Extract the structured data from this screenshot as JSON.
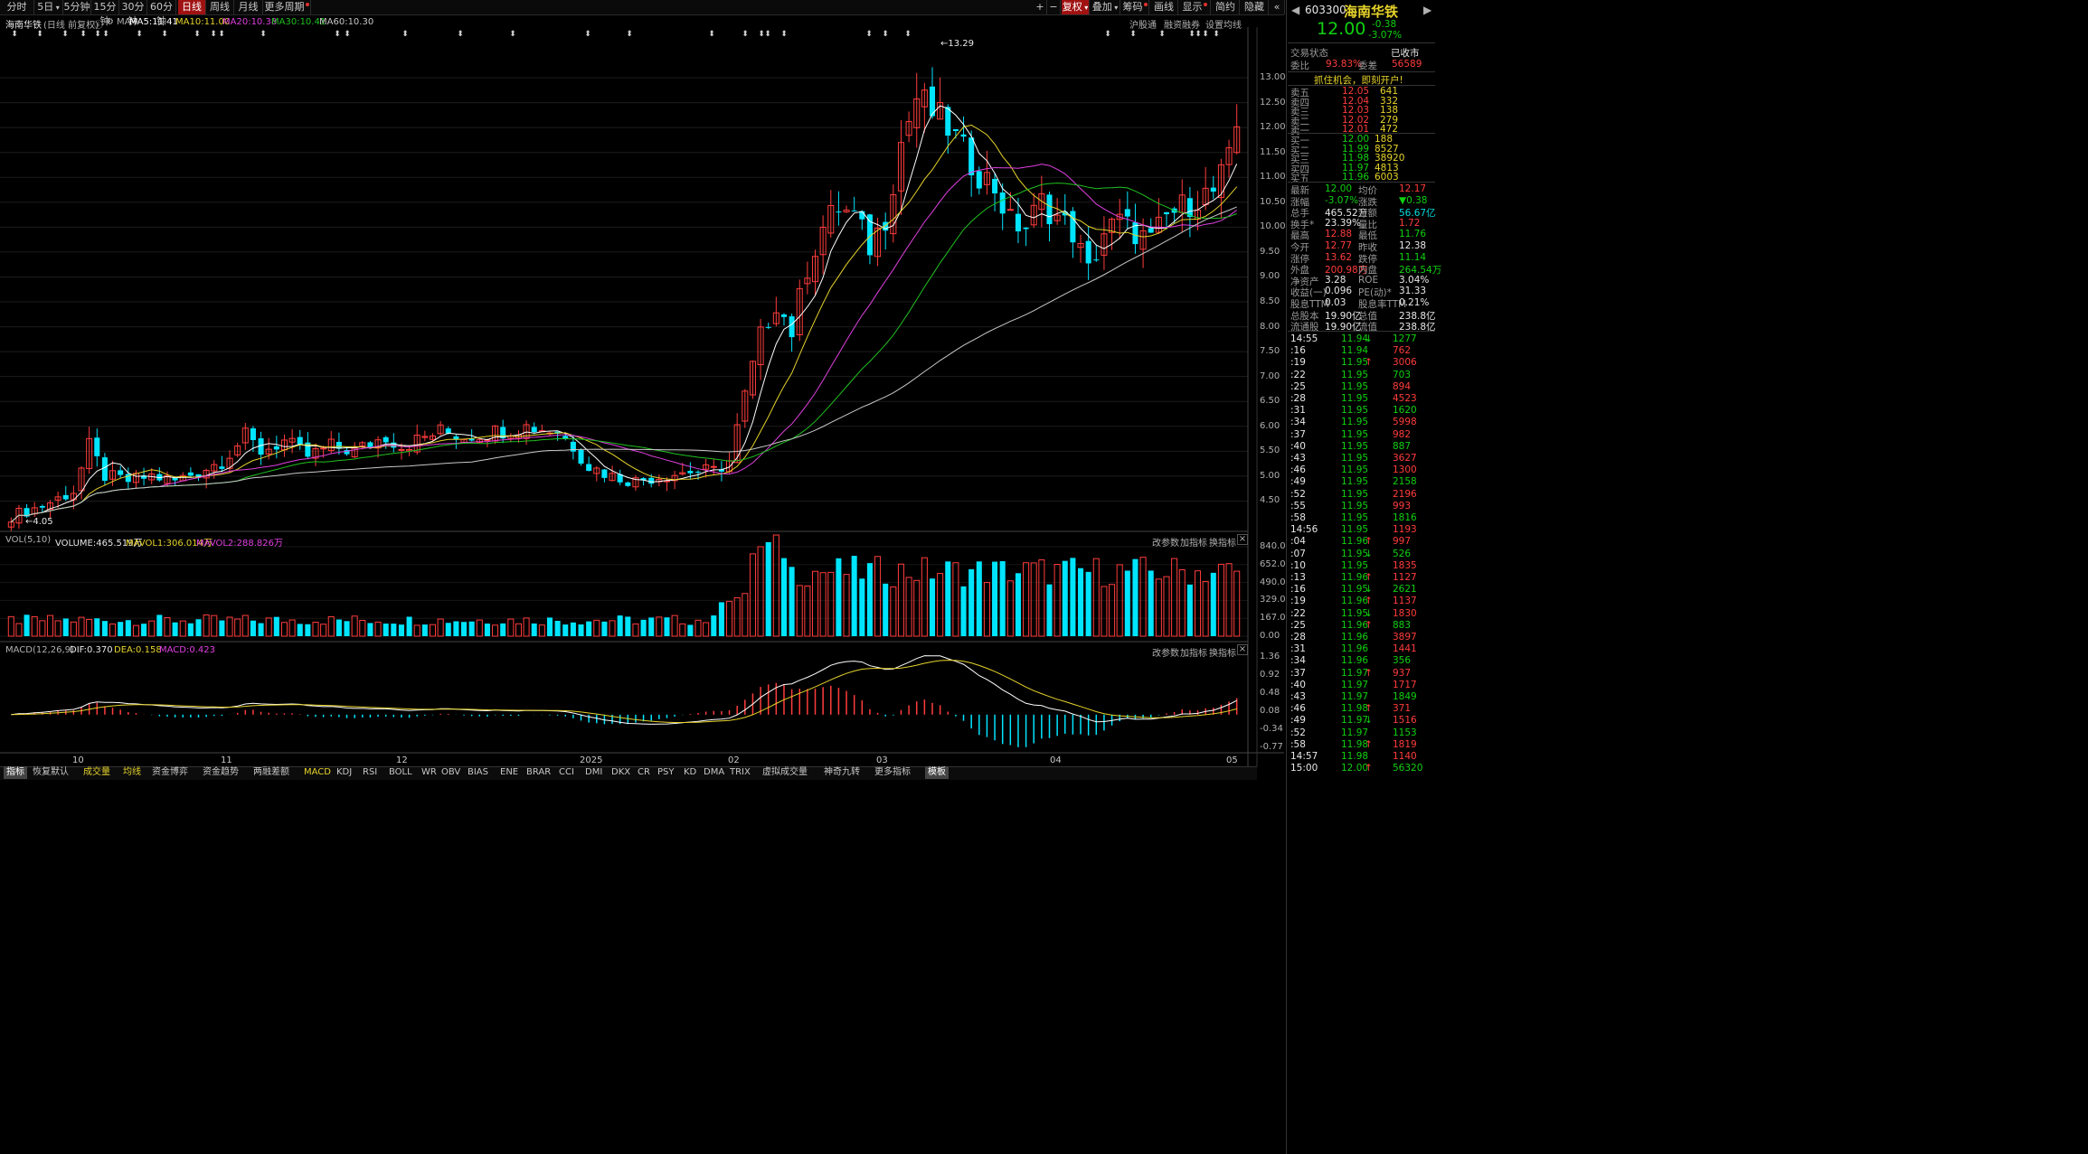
{
  "toolbar": {
    "tabs": [
      "分时",
      "5日",
      "5分钟",
      "15分钟",
      "30分钟",
      "60分钟",
      "日线",
      "周线",
      "月线",
      "更多周期"
    ],
    "active_tab": "日线",
    "right_buttons": [
      "+",
      "−",
      "复权",
      "叠加",
      "筹码",
      "画线",
      "显示",
      "简约",
      "隐藏"
    ]
  },
  "chart_header": {
    "name": "海南华铁",
    "mode": "(日线 前复权)",
    "ma_label": "MA",
    "ma5": "MA5:11.41",
    "ma10": "MA10:11.00",
    "ma20": "MA20:10.38",
    "ma30": "MA30:10.41",
    "ma60": "MA60:10.30",
    "links": [
      "沪股通",
      "融资融券",
      "设置均线"
    ],
    "high_mark": "13.29",
    "low_mark": "4.05"
  },
  "colors": {
    "up": "#ff3c3c",
    "down": "#00e5ff",
    "ma5": "#ffffff",
    "ma10": "#e6d32a",
    "ma20": "#e040e0",
    "ma30": "#20c020",
    "ma60": "#c8c8c8",
    "bg": "#000000"
  },
  "price_axis": [
    "13.00",
    "12.50",
    "12.00",
    "11.50",
    "11.00",
    "10.50",
    "10.00",
    "9.50",
    "9.00",
    "8.50",
    "8.00",
    "7.50",
    "7.00",
    "6.50",
    "6.00",
    "5.50",
    "5.00",
    "4.50"
  ],
  "vol_header": {
    "label": "VOL(5,10)",
    "volume": "VOLUME:465.519万",
    "mavol1": "MAVOL1:306.014万",
    "mavol2": "MAVOL2:288.826万",
    "buttons": [
      "改参数",
      "加指标",
      "换指标"
    ]
  },
  "vol_axis": [
    "840.00",
    "652.00",
    "490.00",
    "329.00",
    "167.00",
    "0.00"
  ],
  "macd_header": {
    "label": "MACD(12,26,9)",
    "dif": "DIF:0.370",
    "dea": "DEA:0.158",
    "macd": "MACD:0.423",
    "buttons": [
      "改参数",
      "加指标",
      "换指标"
    ]
  },
  "macd_axis": [
    "1.36",
    "0.92",
    "0.48",
    "0.08",
    "-0.34",
    "-0.77"
  ],
  "date_axis": [
    "10",
    "11",
    "12",
    "2025",
    "02",
    "03",
    "04",
    "05"
  ],
  "bottom_tabs": [
    "指标",
    "恢复默认",
    "成交量",
    "均线",
    "资金博弈",
    "资金趋势",
    "两融差额",
    "MACD",
    "KDJ",
    "RSI",
    "BOLL",
    "WR",
    "OBV",
    "BIAS",
    "ENE",
    "BRAR",
    "CCI",
    "DMI",
    "DKX",
    "CR",
    "PSY",
    "KD",
    "DMA",
    "TRIX",
    "虚拟成交量",
    "神奇九转",
    "更多指标",
    "模板"
  ],
  "quote": {
    "code": "603300",
    "name": "海南华铁",
    "price": "12.00",
    "change": "-0.38",
    "change_pct": "-3.07%",
    "status_label": "交易状态",
    "status_value": "已收市",
    "webi_label": "委比",
    "webi": "93.83%",
    "weicha_label": "委差",
    "weicha": "56589",
    "promo": "抓住机会，即刻开户!",
    "asks": [
      {
        "label": "卖五",
        "price": "12.05",
        "vol": "641"
      },
      {
        "label": "卖四",
        "price": "12.04",
        "vol": "332"
      },
      {
        "label": "卖三",
        "price": "12.03",
        "vol": "138"
      },
      {
        "label": "卖二",
        "price": "12.02",
        "vol": "279"
      },
      {
        "label": "卖一",
        "price": "12.01",
        "vol": "472"
      }
    ],
    "bids": [
      {
        "label": "买一",
        "price": "12.00",
        "vol": "188"
      },
      {
        "label": "买二",
        "price": "11.99",
        "vol": "8527"
      },
      {
        "label": "买三",
        "price": "11.98",
        "vol": "38920"
      },
      {
        "label": "买四",
        "price": "11.97",
        "vol": "4813"
      },
      {
        "label": "买五",
        "price": "11.96",
        "vol": "6003"
      }
    ],
    "stats": [
      {
        "l1": "最新",
        "v1": "12.00",
        "c1": "grn",
        "l2": "均价",
        "v2": "12.17",
        "c2": "red"
      },
      {
        "l1": "涨幅",
        "v1": "-3.07%",
        "c1": "grn",
        "l2": "涨跌",
        "v2": "▼0.38",
        "c2": "grn"
      },
      {
        "l1": "总手",
        "v1": "465.52万",
        "c1": "wht",
        "l2": "金额",
        "v2": "56.67亿",
        "c2": "cyn"
      },
      {
        "l1": "换手*",
        "v1": "23.39%",
        "c1": "wht",
        "l2": "量比",
        "v2": "1.72",
        "c2": "red"
      },
      {
        "l1": "最高",
        "v1": "12.88",
        "c1": "red",
        "l2": "最低",
        "v2": "11.76",
        "c2": "grn"
      },
      {
        "l1": "今开",
        "v1": "12.77",
        "c1": "red",
        "l2": "昨收",
        "v2": "12.38",
        "c2": "wht"
      },
      {
        "l1": "涨停",
        "v1": "13.62",
        "c1": "red",
        "l2": "跌停",
        "v2": "11.14",
        "c2": "grn"
      },
      {
        "l1": "外盘",
        "v1": "200.98万",
        "c1": "red",
        "l2": "内盘",
        "v2": "264.54万",
        "c2": "grn"
      },
      {
        "l1": "净资产",
        "v1": "3.28",
        "c1": "wht",
        "l2": "ROE",
        "v2": "3.04%",
        "c2": "wht"
      },
      {
        "l1": "收益(一)",
        "v1": "0.096",
        "c1": "wht",
        "l2": "PE(动)*",
        "v2": "31.33",
        "c2": "wht"
      },
      {
        "l1": "股息TTM",
        "v1": "0.03",
        "c1": "wht",
        "l2": "股息率TTM",
        "v2": "0.21%",
        "c2": "wht"
      },
      {
        "l1": "总股本",
        "v1": "19.90亿",
        "c1": "wht",
        "l2": "总值",
        "v2": "238.8亿",
        "c2": "wht"
      },
      {
        "l1": "流通股",
        "v1": "19.90亿",
        "c1": "wht",
        "l2": "流值",
        "v2": "238.8亿",
        "c2": "wht"
      }
    ],
    "ticks": [
      {
        "t": "14:55",
        "p": "11.94",
        "a": "↓",
        "v": "1277"
      },
      {
        "t": ":16",
        "p": "11.94",
        "a": "",
        "v": "762"
      },
      {
        "t": ":19",
        "p": "11.95",
        "a": "↑",
        "v": "3006"
      },
      {
        "t": ":22",
        "p": "11.95",
        "a": "",
        "v": "703"
      },
      {
        "t": ":25",
        "p": "11.95",
        "a": "",
        "v": "894"
      },
      {
        "t": ":28",
        "p": "11.95",
        "a": "",
        "v": "4523"
      },
      {
        "t": ":31",
        "p": "11.95",
        "a": "",
        "v": "1620"
      },
      {
        "t": ":34",
        "p": "11.95",
        "a": "",
        "v": "5998"
      },
      {
        "t": ":37",
        "p": "11.95",
        "a": "",
        "v": "982"
      },
      {
        "t": ":40",
        "p": "11.95",
        "a": "",
        "v": "887"
      },
      {
        "t": ":43",
        "p": "11.95",
        "a": "",
        "v": "3627"
      },
      {
        "t": ":46",
        "p": "11.95",
        "a": "",
        "v": "1300"
      },
      {
        "t": ":49",
        "p": "11.95",
        "a": "",
        "v": "2158"
      },
      {
        "t": ":52",
        "p": "11.95",
        "a": "",
        "v": "2196"
      },
      {
        "t": ":55",
        "p": "11.95",
        "a": "",
        "v": "993"
      },
      {
        "t": ":58",
        "p": "11.95",
        "a": "",
        "v": "1816"
      },
      {
        "t": "14:56",
        "p": "11.95",
        "a": "",
        "v": "1193"
      },
      {
        "t": ":04",
        "p": "11.96",
        "a": "↑",
        "v": "997"
      },
      {
        "t": ":07",
        "p": "11.95",
        "a": "↓",
        "v": "526"
      },
      {
        "t": ":10",
        "p": "11.95",
        "a": "",
        "v": "1835"
      },
      {
        "t": ":13",
        "p": "11.96",
        "a": "↑",
        "v": "1127"
      },
      {
        "t": ":16",
        "p": "11.95",
        "a": "↓",
        "v": "2621"
      },
      {
        "t": ":19",
        "p": "11.96",
        "a": "↑",
        "v": "1137"
      },
      {
        "t": ":22",
        "p": "11.95",
        "a": "↓",
        "v": "1830"
      },
      {
        "t": ":25",
        "p": "11.96",
        "a": "↑",
        "v": "883"
      },
      {
        "t": ":28",
        "p": "11.96",
        "a": "",
        "v": "3897"
      },
      {
        "t": ":31",
        "p": "11.96",
        "a": "",
        "v": "1441"
      },
      {
        "t": ":34",
        "p": "11.96",
        "a": "",
        "v": "356"
      },
      {
        "t": ":37",
        "p": "11.97",
        "a": "↑",
        "v": "937"
      },
      {
        "t": ":40",
        "p": "11.97",
        "a": "",
        "v": "1717"
      },
      {
        "t": ":43",
        "p": "11.97",
        "a": "",
        "v": "1849"
      },
      {
        "t": ":46",
        "p": "11.98",
        "a": "↑",
        "v": "371"
      },
      {
        "t": ":49",
        "p": "11.97",
        "a": "↓",
        "v": "1516"
      },
      {
        "t": ":52",
        "p": "11.97",
        "a": "",
        "v": "1153"
      },
      {
        "t": ":58",
        "p": "11.98",
        "a": "↑",
        "v": "1819"
      },
      {
        "t": "14:57",
        "p": "11.98",
        "a": "",
        "v": "1140"
      },
      {
        "t": "15:00",
        "p": "12.00",
        "a": "↑",
        "v": "56320"
      }
    ]
  },
  "chart_data": {
    "type": "candlestick",
    "ylim": [
      4.0,
      13.4
    ],
    "close_points": [
      [
        0,
        4.2
      ],
      [
        4,
        4.4
      ],
      [
        8,
        4.7
      ],
      [
        10,
        5.6
      ],
      [
        12,
        5.0
      ],
      [
        15,
        4.9
      ],
      [
        18,
        5.0
      ],
      [
        21,
        4.9
      ],
      [
        24,
        5.1
      ],
      [
        27,
        5.3
      ],
      [
        30,
        5.8
      ],
      [
        32,
        5.5
      ],
      [
        35,
        5.7
      ],
      [
        38,
        5.4
      ],
      [
        41,
        5.6
      ],
      [
        44,
        5.5
      ],
      [
        48,
        5.8
      ],
      [
        50,
        5.6
      ],
      [
        55,
        5.9
      ],
      [
        58,
        5.8
      ],
      [
        62,
        5.9
      ],
      [
        66,
        6.0
      ],
      [
        70,
        5.9
      ],
      [
        72,
        5.6
      ],
      [
        74,
        5.2
      ],
      [
        77,
        5.0
      ],
      [
        80,
        4.9
      ],
      [
        83,
        5.0
      ],
      [
        87,
        5.1
      ],
      [
        90,
        5.1
      ],
      [
        92,
        5.3
      ],
      [
        94,
        6.6
      ],
      [
        96,
        7.8
      ],
      [
        98,
        8.5
      ],
      [
        100,
        7.9
      ],
      [
        102,
        9.2
      ],
      [
        104,
        10.0
      ],
      [
        106,
        10.4
      ],
      [
        108,
        10.2
      ],
      [
        110,
        9.6
      ],
      [
        112,
        10.2
      ],
      [
        114,
        11.7
      ],
      [
        116,
        12.6
      ],
      [
        118,
        12.3
      ],
      [
        120,
        12.0
      ],
      [
        122,
        11.5
      ],
      [
        124,
        11.1
      ],
      [
        126,
        10.8
      ],
      [
        128,
        10.1
      ],
      [
        130,
        10.0
      ],
      [
        132,
        10.5
      ],
      [
        134,
        10.2
      ],
      [
        136,
        9.9
      ],
      [
        138,
        9.1
      ],
      [
        140,
        9.9
      ],
      [
        142,
        10.1
      ],
      [
        144,
        9.9
      ],
      [
        146,
        9.7
      ],
      [
        148,
        10.2
      ],
      [
        150,
        10.4
      ],
      [
        152,
        10.6
      ],
      [
        154,
        10.7
      ],
      [
        156,
        11.3
      ],
      [
        157,
        12.0
      ]
    ]
  }
}
